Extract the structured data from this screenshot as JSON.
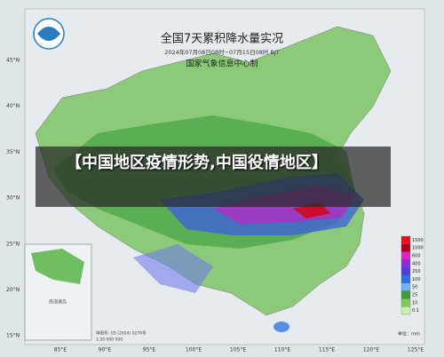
{
  "header": {
    "title": "全国7天累积降水量实况",
    "period": "2024年07月08日08时−07月15日08时 BJT",
    "producer": "国家气象信息中心制"
  },
  "overlay": {
    "headline": "【中国地区疫情形势,中国役情地区】"
  },
  "latitudes": [
    "45°N",
    "40°N",
    "35°N",
    "30°N",
    "25°N",
    "20°N",
    "15°N"
  ],
  "longitudes": [
    "85°E",
    "90°E",
    "95°E",
    "100°E",
    "105°E",
    "110°E",
    "115°E",
    "120°E",
    "125°E"
  ],
  "legend": {
    "levels": [
      "1500",
      "1000",
      "600",
      "400",
      "250",
      "100",
      "50",
      "25",
      "10",
      "0.1"
    ],
    "unit": "单位：mm"
  },
  "footer": {
    "approval": "审图号: GS (2024) 0276号",
    "scale": "1:20 000 000"
  },
  "inset": {
    "label": "南海诸岛"
  }
}
